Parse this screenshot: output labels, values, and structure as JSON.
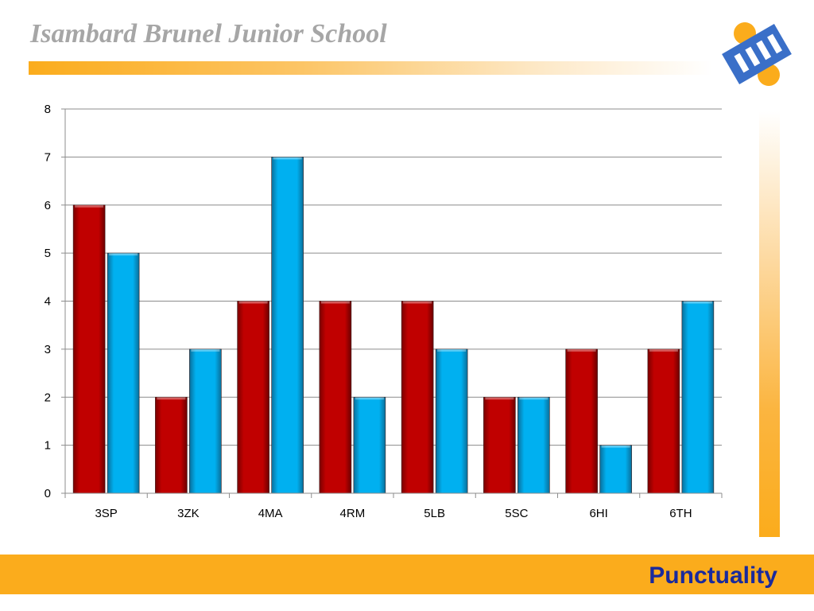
{
  "header": {
    "school_name": "Isambard Brunel Junior School"
  },
  "footer": {
    "title": "Punctuality"
  },
  "logo": {
    "icon": "school-gear-logo-icon",
    "colors": [
      "#3a6fc8",
      "#fbac1c"
    ]
  },
  "colors": {
    "accent": "#fbac1c",
    "footer_text": "#1a2a9c",
    "title_text": "#a6a6a6",
    "series_red": "#c00000",
    "series_blue": "#00b0f0"
  },
  "chart_data": {
    "type": "bar",
    "categories": [
      "3SP",
      "3ZK",
      "4MA",
      "4RM",
      "5LB",
      "5SC",
      "6HI",
      "6TH"
    ],
    "series": [
      {
        "values": [
          6,
          2,
          4,
          4,
          4,
          2,
          3,
          3
        ],
        "color": "#c00000"
      },
      {
        "values": [
          5,
          3,
          7,
          2,
          3,
          2,
          1,
          4
        ],
        "color": "#00b0f0"
      }
    ],
    "yticks": [
      "0",
      "1",
      "2",
      "3",
      "4",
      "5",
      "6",
      "7",
      "8"
    ],
    "ylim": [
      0,
      8
    ],
    "grid": true,
    "legend": "none"
  }
}
